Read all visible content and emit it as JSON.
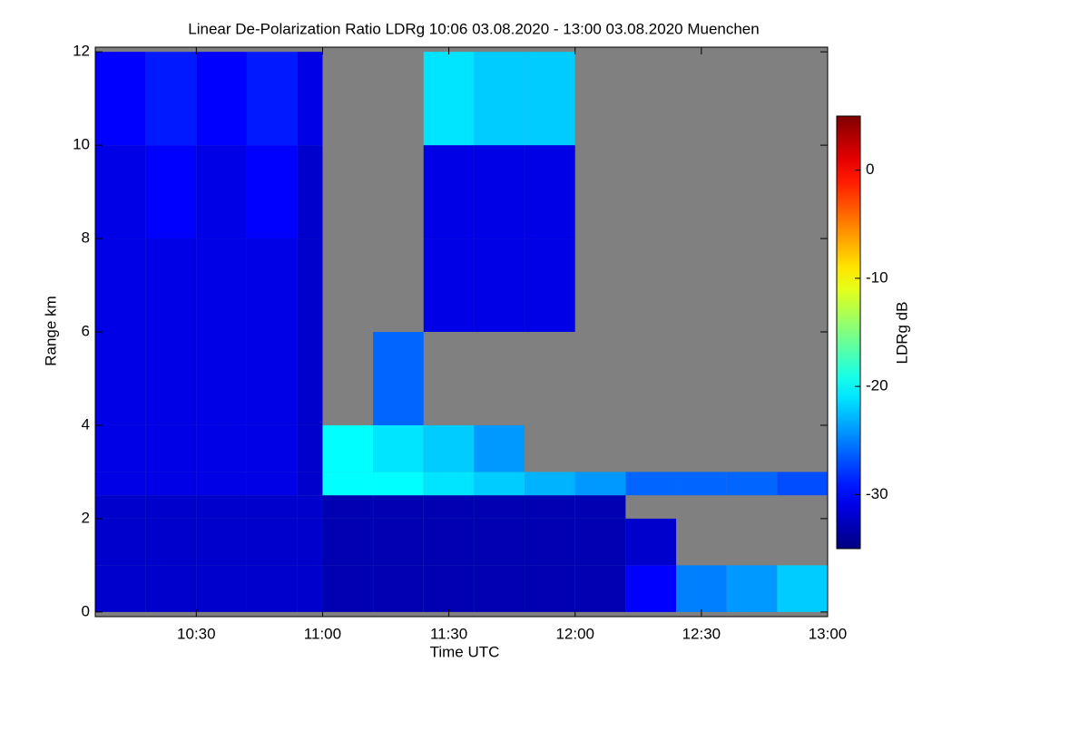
{
  "chart_data": {
    "type": "heatmap",
    "title": "Linear De-Polarization Ratio LDRg   10:06 03.08.2020 - 13:00 03.08.2020 Muenchen",
    "x_label": "Time UTC",
    "y_label": "Range km",
    "colorbar_label": "LDRg dB",
    "x_edges": [
      10.1,
      10.3,
      10.5,
      10.7,
      10.9,
      11.0,
      11.2,
      11.4,
      11.6,
      11.8,
      12.0,
      12.2,
      12.4,
      12.6,
      12.8,
      13.0
    ],
    "y_edges": [
      0,
      1,
      2,
      2.5,
      3,
      4,
      6,
      8,
      10,
      12
    ],
    "z": [
      [
        -32,
        -32,
        -32,
        -32,
        -32,
        -33,
        -33,
        -33,
        -33,
        -33,
        -33,
        -30,
        -25,
        -24,
        -22
      ],
      [
        -32,
        -32,
        -32,
        -32,
        -32,
        -33,
        -33,
        -33,
        -33,
        -33,
        -33,
        -32,
        null,
        null,
        null
      ],
      [
        -32,
        -32,
        -32,
        -32,
        -32,
        -33,
        -33,
        -33,
        -33,
        -33,
        -33,
        null,
        null,
        null,
        null
      ],
      [
        -31,
        -31,
        -31,
        -31,
        -32,
        -20,
        -20,
        -21,
        -22,
        -23,
        -24,
        -26,
        -26,
        -26,
        -27
      ],
      [
        -31,
        -31,
        -31,
        -31,
        -32,
        -20,
        -21,
        -22,
        -24,
        null,
        null,
        null,
        null,
        null,
        null
      ],
      [
        -31,
        -31,
        -31,
        -31,
        -32,
        null,
        -26,
        null,
        null,
        null,
        null,
        null,
        null,
        null,
        null
      ],
      [
        -31,
        -31,
        -31,
        -31,
        -32,
        null,
        null,
        -31,
        -31,
        -31,
        null,
        null,
        null,
        null,
        null
      ],
      [
        -31,
        -30,
        -31,
        -30,
        -32,
        null,
        null,
        -31,
        -31,
        -31,
        null,
        null,
        null,
        null,
        null
      ],
      [
        -30,
        -29,
        -30,
        -29,
        -31,
        null,
        null,
        -21,
        -22,
        -22,
        null,
        null,
        null,
        null,
        null
      ]
    ],
    "xlim": [
      10.1,
      13.0
    ],
    "xticks": [
      {
        "value": 10.5,
        "label": "10:30"
      },
      {
        "value": 11.0,
        "label": "11:00"
      },
      {
        "value": 11.5,
        "label": "11:30"
      },
      {
        "value": 12.0,
        "label": "12:00"
      },
      {
        "value": 12.5,
        "label": "12:30"
      },
      {
        "value": 13.0,
        "label": "13:00"
      }
    ],
    "ylim": [
      -0.1,
      12.1
    ],
    "yticks": [
      0,
      2,
      4,
      6,
      8,
      10,
      12
    ],
    "zlim": [
      -35,
      5
    ],
    "zticks": [
      0,
      -10,
      -20,
      -30
    ],
    "colormap": "jet",
    "missing_color": "#808080"
  }
}
